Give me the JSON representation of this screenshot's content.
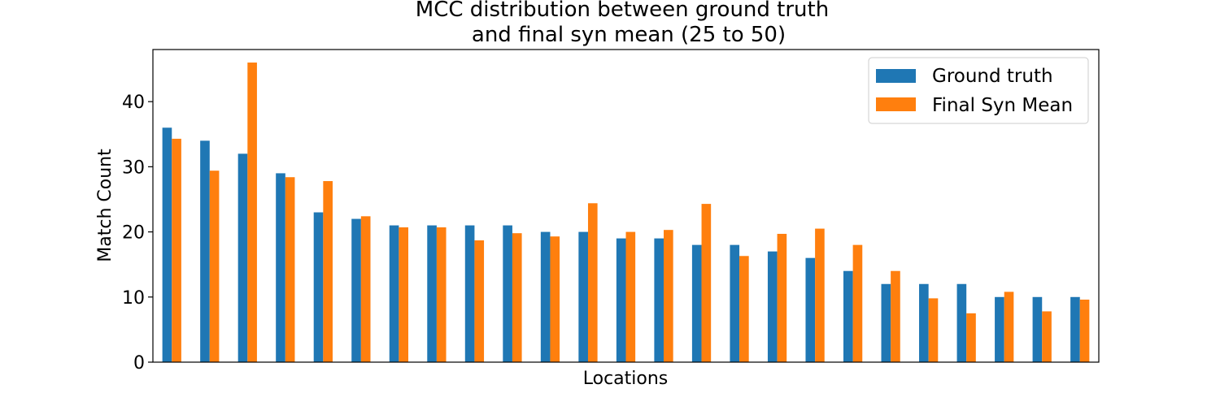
{
  "chart_data": {
    "type": "bar",
    "title_line1": "MCC distribution between ground truth",
    "title_line2": "and final syn mean (25 to 50)",
    "xlabel": "Locations",
    "ylabel": "Match Count",
    "ylim": [
      0,
      48
    ],
    "yticks": [
      0,
      10,
      20,
      30,
      40
    ],
    "grid": false,
    "legend_position": "top-right",
    "colors": {
      "ground_truth": "#1f77b4",
      "final_syn_mean": "#ff7f0e"
    },
    "categories_count": 25,
    "series": [
      {
        "name": "Ground truth",
        "color": "#1f77b4",
        "values": [
          36,
          34,
          32,
          29,
          23,
          22,
          21,
          21,
          21,
          21,
          20,
          20,
          19,
          19,
          18,
          18,
          17,
          16,
          14,
          12,
          12,
          12,
          10,
          10,
          10
        ]
      },
      {
        "name": "Final Syn Mean",
        "color": "#ff7f0e",
        "values": [
          34.3,
          29.4,
          46,
          28.4,
          27.8,
          22.4,
          20.7,
          20.7,
          18.7,
          19.8,
          19.3,
          24.4,
          20,
          20.3,
          24.3,
          16.3,
          19.7,
          20.5,
          18,
          14,
          9.8,
          7.5,
          10.8,
          7.8,
          9.6
        ]
      }
    ]
  }
}
